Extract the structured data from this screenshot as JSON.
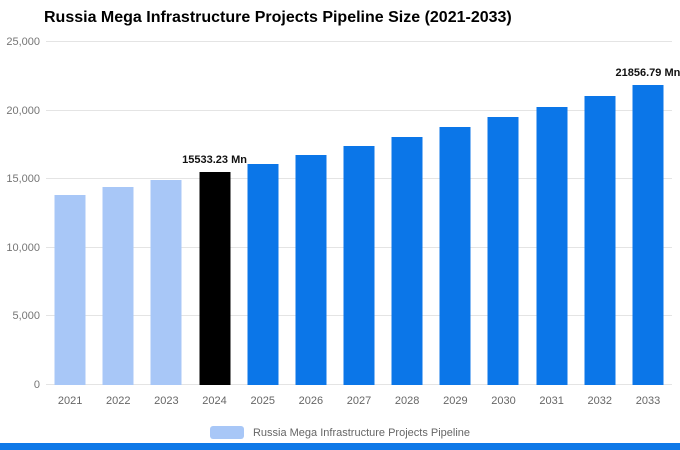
{
  "title": "Russia Mega Infrastructure Projects Pipeline Size (2021-2033)",
  "colors": {
    "light_blue": "#a8c7f7",
    "primary_blue": "#0b76e8",
    "highlight_black": "#000000",
    "grid_line": "#e4e4e4",
    "axis_text": "#757575",
    "bottom_strip": "#0f79e8"
  },
  "legend": {
    "label": "Russia Mega Infrastructure Projects Pipeline",
    "swatch_color": "#a8c7f7"
  },
  "chart_data": {
    "type": "bar",
    "title": "Russia Mega Infrastructure Projects Pipeline Size (2021-2033)",
    "unit": "Mn",
    "categories": [
      "2021",
      "2022",
      "2023",
      "2024",
      "2025",
      "2026",
      "2027",
      "2028",
      "2029",
      "2030",
      "2031",
      "2032",
      "2033"
    ],
    "series": [
      {
        "name": "Russia Mega Infrastructure Projects Pipeline",
        "values": [
          13861.2,
          14397.5,
          14954.6,
          15533.23,
          16134.4,
          16758.8,
          17407.4,
          18081.1,
          18780.9,
          19507.7,
          20262.7,
          21046.8,
          21856.79
        ]
      }
    ],
    "ylim": [
      0,
      25000
    ],
    "y_ticks": [
      "25,000",
      "20,000",
      "15,000",
      "10,000",
      "5,000",
      "0"
    ],
    "bar_colors": [
      "#a8c7f7",
      "#a8c7f7",
      "#a8c7f7",
      "#000000",
      "#0b76e8",
      "#0b76e8",
      "#0b76e8",
      "#0b76e8",
      "#0b76e8",
      "#0b76e8",
      "#0b76e8",
      "#0b76e8",
      "#0b76e8"
    ],
    "annotations": [
      {
        "category": "2024",
        "text": "15533.23 Mn"
      },
      {
        "category": "2033",
        "text": "21856.79 Mn"
      }
    ],
    "grid": true,
    "legend_position": "bottom",
    "xlabel": "",
    "ylabel": ""
  }
}
